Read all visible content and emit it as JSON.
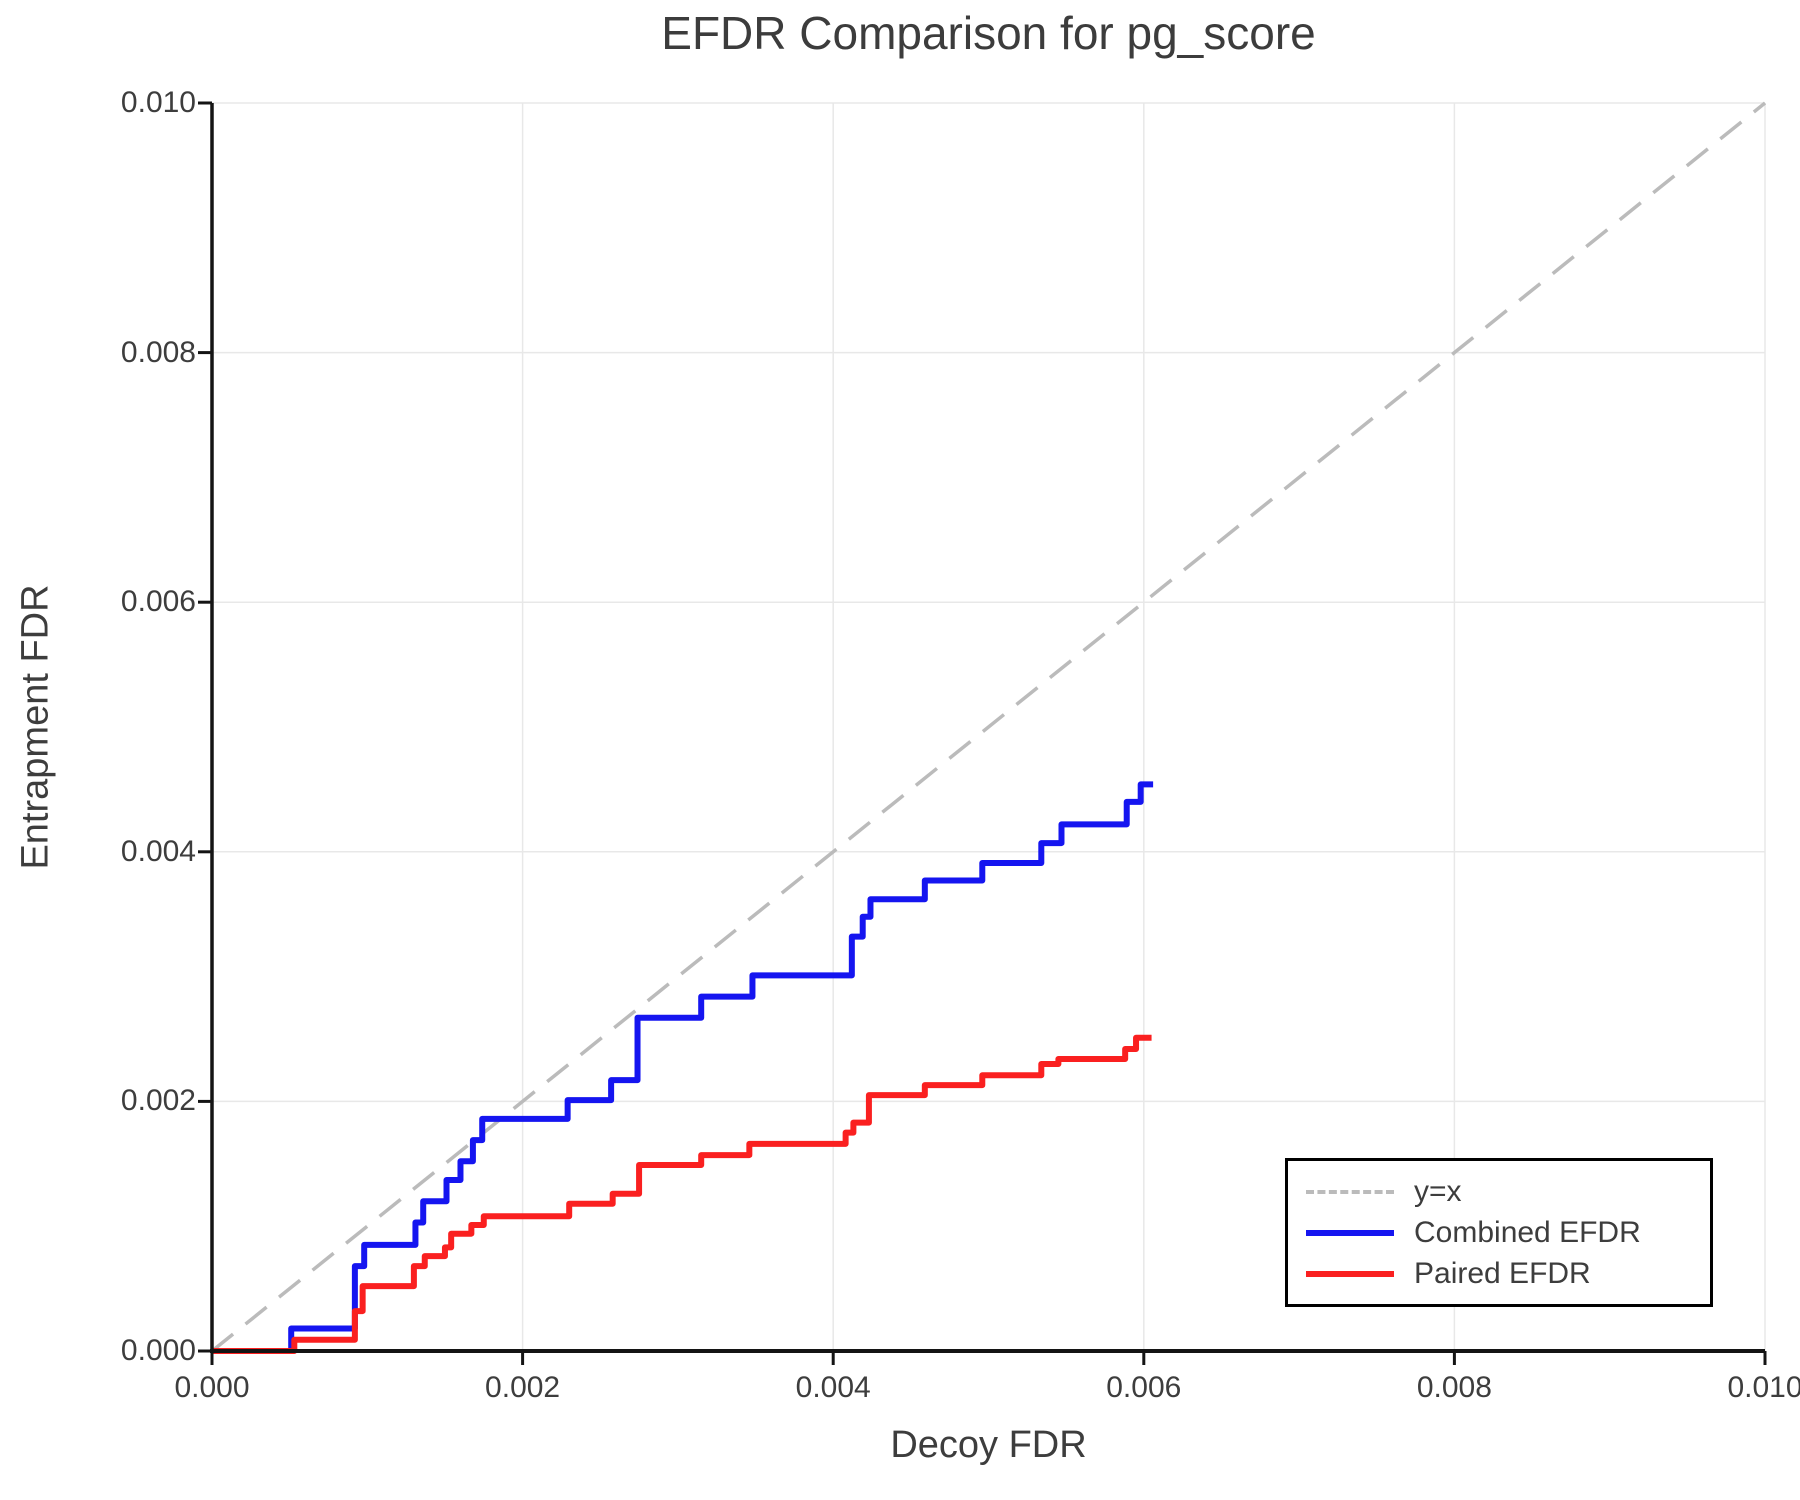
{
  "chart_data": {
    "type": "line",
    "subtype": "step",
    "title": "EFDR Comparison for pg_score",
    "xlabel": "Decoy FDR",
    "ylabel": "Entrapment FDR",
    "xlim": [
      0,
      0.01
    ],
    "ylim": [
      0,
      0.01
    ],
    "x_ticks": [
      0,
      0.002,
      0.004,
      0.006,
      0.008,
      0.01
    ],
    "x_tick_labels": [
      "0.000",
      "0.002",
      "0.004",
      "0.006",
      "0.008",
      "0.010"
    ],
    "y_ticks": [
      0,
      0.002,
      0.004,
      0.006,
      0.008,
      0.01
    ],
    "y_tick_labels": [
      "0.000",
      "0.002",
      "0.004",
      "0.006",
      "0.008",
      "0.010"
    ],
    "grid": true,
    "grid_color": "#e8e8e8",
    "axis_color": "#141414",
    "text_color": "#3d3d3d",
    "legend_position": "lower right",
    "reference_line": {
      "label": "y=x",
      "from": [
        0,
        0
      ],
      "to": [
        0.01,
        0.01
      ],
      "style": "dashed",
      "color": "#bbbbbb"
    },
    "legend": [
      {
        "label": "y=x"
      },
      {
        "label": "Combined EFDR"
      },
      {
        "label": "Paired EFDR"
      }
    ],
    "series": [
      {
        "name": "Combined EFDR",
        "color": "#1515f0",
        "end_x": 0.00606,
        "points": [
          [
            0,
            0
          ],
          [
            0.00051,
            0.00018
          ],
          [
            0.00092,
            0.00068
          ],
          [
            0.00098,
            0.00085
          ],
          [
            0.00131,
            0.00103
          ],
          [
            0.00136,
            0.0012
          ],
          [
            0.00151,
            0.00137
          ],
          [
            0.0016,
            0.00152
          ],
          [
            0.00168,
            0.00169
          ],
          [
            0.00174,
            0.00186
          ],
          [
            0.00229,
            0.00201
          ],
          [
            0.00257,
            0.00217
          ],
          [
            0.00274,
            0.00267
          ],
          [
            0.00315,
            0.00284
          ],
          [
            0.00348,
            0.00301
          ],
          [
            0.00412,
            0.00332
          ],
          [
            0.00419,
            0.00348
          ],
          [
            0.00424,
            0.00362
          ],
          [
            0.00459,
            0.00377
          ],
          [
            0.00496,
            0.00391
          ],
          [
            0.00534,
            0.00407
          ],
          [
            0.00547,
            0.00422
          ],
          [
            0.00589,
            0.0044
          ],
          [
            0.00598,
            0.00454
          ]
        ]
      },
      {
        "name": "Paired EFDR",
        "color": "#fa2020",
        "end_x": 0.00605,
        "points": [
          [
            0,
            0
          ],
          [
            0.00053,
            9e-05
          ],
          [
            0.00092,
            0.00032
          ],
          [
            0.00097,
            0.00052
          ],
          [
            0.0013,
            0.00068
          ],
          [
            0.00137,
            0.00076
          ],
          [
            0.0015,
            0.00083
          ],
          [
            0.00154,
            0.00094
          ],
          [
            0.00167,
            0.00101
          ],
          [
            0.00175,
            0.00108
          ],
          [
            0.0023,
            0.00118
          ],
          [
            0.00258,
            0.00126
          ],
          [
            0.00275,
            0.00149
          ],
          [
            0.00315,
            0.00157
          ],
          [
            0.00346,
            0.00166
          ],
          [
            0.00408,
            0.00175
          ],
          [
            0.00413,
            0.00183
          ],
          [
            0.00423,
            0.00205
          ],
          [
            0.00459,
            0.00213
          ],
          [
            0.00496,
            0.00221
          ],
          [
            0.00534,
            0.0023
          ],
          [
            0.00545,
            0.00234
          ],
          [
            0.00588,
            0.00242
          ],
          [
            0.00595,
            0.00251
          ]
        ]
      }
    ]
  }
}
